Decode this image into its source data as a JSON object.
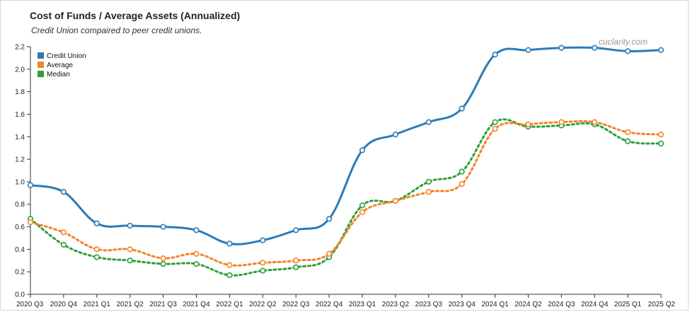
{
  "header": {
    "title": "Cost of Funds / Average Assets (Annualized)",
    "subtitle": "Credit Union compaired to peer credit unions.",
    "watermark": "cuclarity.com"
  },
  "chart_data": {
    "type": "line",
    "title": "Cost of Funds / Average Assets (Annualized)",
    "subtitle": "Credit Union compaired to peer credit unions.",
    "categories": [
      "2020 Q3",
      "2020 Q4",
      "2021 Q1",
      "2021 Q2",
      "2021 Q3",
      "2021 Q4",
      "2022 Q1",
      "2022 Q2",
      "2022 Q3",
      "2022 Q4",
      "2023 Q1",
      "2023 Q2",
      "2023 Q3",
      "2023 Q4",
      "2024 Q1",
      "2024 Q2",
      "2024 Q3",
      "2024 Q4",
      "2025 Q1",
      "2025 Q2"
    ],
    "ylim": [
      0,
      2.2
    ],
    "yticks": [
      "0.0",
      "0.2",
      "0.4",
      "0.6",
      "0.8",
      "1.0",
      "1.2",
      "1.4",
      "1.6",
      "1.8",
      "2.0",
      "2.2"
    ],
    "legend_position": "top-left",
    "grid": false,
    "series": [
      {
        "name": "Credit Union",
        "color": "#2b7bb9",
        "dashed": false,
        "values": [
          0.97,
          0.91,
          0.63,
          0.61,
          0.6,
          0.57,
          0.45,
          0.48,
          0.57,
          0.67,
          1.28,
          1.42,
          1.53,
          1.65,
          2.13,
          2.17,
          2.19,
          2.19,
          2.16,
          2.17
        ]
      },
      {
        "name": "Average",
        "color": "#f28527",
        "dashed": true,
        "values": [
          0.64,
          0.55,
          0.4,
          0.4,
          0.32,
          0.36,
          0.26,
          0.28,
          0.3,
          0.36,
          0.73,
          0.83,
          0.91,
          0.98,
          1.47,
          1.51,
          1.53,
          1.53,
          1.44,
          1.42
        ]
      },
      {
        "name": "Median",
        "color": "#2e9e3a",
        "dashed": true,
        "values": [
          0.67,
          0.44,
          0.33,
          0.3,
          0.27,
          0.27,
          0.17,
          0.21,
          0.24,
          0.33,
          0.79,
          0.83,
          1.0,
          1.09,
          1.53,
          1.49,
          1.5,
          1.51,
          1.36,
          1.34
        ]
      }
    ]
  }
}
